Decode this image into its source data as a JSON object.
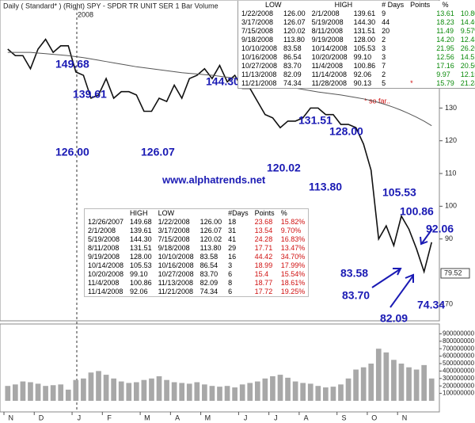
{
  "header": {
    "title": "Daily ( Standard* )  (Right)  SPY - SPDR TR UNIT SER 1  Bar  Volume",
    "year": "2008"
  },
  "website": "www.alphatrends.net",
  "note": "* so far..",
  "price_marker": 79.52,
  "annotations": [
    "149.68",
    "139.61",
    "126.00",
    "126.07",
    "144.30",
    "120.02",
    "131.51",
    "128.00",
    "113.80",
    "105.53",
    "100.86",
    "83.58",
    "83.70",
    "82.09",
    "74.34",
    "92.06"
  ],
  "tables": [
    {
      "headers": [
        "LOW",
        "HIGH",
        "# Days",
        "Points",
        "%"
      ],
      "flag": "*",
      "rows": [
        [
          "1/22/2008",
          "126.00",
          "2/1/2008",
          "139.61",
          "9",
          "13.61",
          "10.80%"
        ],
        [
          "3/17/2008",
          "126.07",
          "5/19/2008",
          "144.30",
          "44",
          "18.23",
          "14.46%"
        ],
        [
          "7/15/2008",
          "120.02",
          "8/11/2008",
          "131.51",
          "20",
          "11.49",
          "9.57%"
        ],
        [
          "9/18/2008",
          "113.80",
          "9/19/2008",
          "128.00",
          "2",
          "14.20",
          "12.48%"
        ],
        [
          "10/10/2008",
          "83.58",
          "10/14/2008",
          "105.53",
          "3",
          "21.95",
          "26.26%"
        ],
        [
          "10/16/2008",
          "86.54",
          "10/20/2008",
          "99.10",
          "3",
          "12.56",
          "14.51%"
        ],
        [
          "10/27/2008",
          "83.70",
          "11/4/2008",
          "100.86",
          "7",
          "17.16",
          "20.50%"
        ],
        [
          "11/13/2008",
          "82.09",
          "11/14/2008",
          "92.06",
          "2",
          "9.97",
          "12.15%"
        ],
        [
          "11/21/2008",
          "74.34",
          "11/28/2008",
          "90.13",
          "5",
          "15.79",
          "21.24%"
        ]
      ]
    },
    {
      "headers": [
        "HIGH",
        "LOW",
        "#Days",
        "Points",
        "%"
      ],
      "rows": [
        [
          "12/26/2007",
          "149.68",
          "1/22/2008",
          "126.00",
          "18",
          "23.68",
          "15.82%"
        ],
        [
          "2/1/2008",
          "139.61",
          "3/17/2008",
          "126.07",
          "31",
          "13.54",
          "9.70%"
        ],
        [
          "5/19/2008",
          "144.30",
          "7/15/2008",
          "120.02",
          "41",
          "24.28",
          "16.83%"
        ],
        [
          "8/11/2008",
          "131.51",
          "9/18/2008",
          "113.80",
          "29",
          "17.71",
          "13.47%"
        ],
        [
          "9/19/2008",
          "128.00",
          "10/10/2008",
          "83.58",
          "16",
          "44.42",
          "34.70%"
        ],
        [
          "10/14/2008",
          "105.53",
          "10/16/2008",
          "86.54",
          "3",
          "18.99",
          "17.99%"
        ],
        [
          "10/20/2008",
          "99.10",
          "10/27/2008",
          "83.70",
          "6",
          "15.4",
          "15.54%"
        ],
        [
          "11/4/2008",
          "100.86",
          "11/13/2008",
          "82.09",
          "8",
          "18.77",
          "18.61%"
        ],
        [
          "11/14/2008",
          "92.06",
          "11/21/2008",
          "74.34",
          "6",
          "17.72",
          "19.25%"
        ]
      ]
    }
  ],
  "chart_data": [
    {
      "type": "line",
      "categories": [
        "N",
        null,
        null,
        null,
        "D",
        null,
        null,
        null,
        null,
        "J",
        null,
        null,
        null,
        "F",
        null,
        null,
        null,
        null,
        "M",
        null,
        null,
        null,
        "A",
        null,
        null,
        null,
        "M",
        null,
        null,
        null,
        null,
        "J",
        null,
        null,
        null,
        "J",
        null,
        null,
        null,
        "A",
        null,
        null,
        null,
        null,
        "S",
        null,
        null,
        null,
        "O",
        null,
        null,
        null,
        "N",
        null,
        null,
        null,
        null
      ],
      "series": [
        {
          "color": "#111111",
          "values": [
            148,
            146,
            146,
            142,
            148,
            151,
            147,
            149,
            149,
            141,
            140,
            133,
            134,
            139,
            133,
            135,
            135,
            134,
            129,
            129,
            133,
            132,
            137,
            133,
            139,
            140,
            142,
            139,
            143,
            138,
            140,
            136,
            136,
            132,
            128,
            127,
            124,
            126,
            126,
            127,
            130,
            130,
            128,
            128,
            125,
            125,
            124,
            119,
            111,
            90,
            94,
            88,
            97,
            93,
            87,
            80,
            89
          ]
        },
        {
          "color": "#555555",
          "values": [
            147,
            147,
            147,
            147,
            146.8,
            146.6,
            146.4,
            146.2,
            146,
            145.7,
            145.4,
            145,
            144.6,
            144.2,
            143.8,
            143.4,
            143,
            142.6,
            142.3,
            142,
            141.7,
            141.4,
            141.1,
            140.8,
            140.6,
            140.4,
            140.2,
            140,
            139.7,
            139.4,
            139.1,
            138.8,
            138.5,
            138.1,
            137.7,
            137.3,
            136.9,
            136.5,
            136.1,
            135.7,
            135.3,
            134.9,
            134.6,
            134.3,
            134,
            133.6,
            133.2,
            132.8,
            132.3,
            131.7,
            131,
            130.2,
            129.3,
            128.3,
            127.2,
            126,
            124.6
          ]
        }
      ],
      "ylim": [
        65,
        163
      ],
      "yticks": [
        70,
        90,
        100,
        110,
        120,
        130,
        140
      ]
    },
    {
      "type": "bar",
      "color": "#a8a8a8",
      "values": [
        200000000,
        220000000,
        260000000,
        250000000,
        230000000,
        200000000,
        210000000,
        220000000,
        150000000,
        280000000,
        300000000,
        380000000,
        400000000,
        350000000,
        300000000,
        260000000,
        240000000,
        250000000,
        280000000,
        300000000,
        330000000,
        280000000,
        250000000,
        240000000,
        230000000,
        250000000,
        220000000,
        200000000,
        190000000,
        200000000,
        180000000,
        220000000,
        240000000,
        260000000,
        300000000,
        330000000,
        350000000,
        310000000,
        260000000,
        240000000,
        230000000,
        200000000,
        180000000,
        190000000,
        220000000,
        300000000,
        420000000,
        450000000,
        500000000,
        700000000,
        650000000,
        550000000,
        500000000,
        450000000,
        420000000,
        480000000,
        300000000
      ],
      "ylim": [
        0,
        1000000000
      ],
      "yticks": [
        100000000,
        200000000,
        300000000,
        400000000,
        500000000,
        600000000,
        700000000,
        800000000,
        900000000
      ]
    }
  ]
}
